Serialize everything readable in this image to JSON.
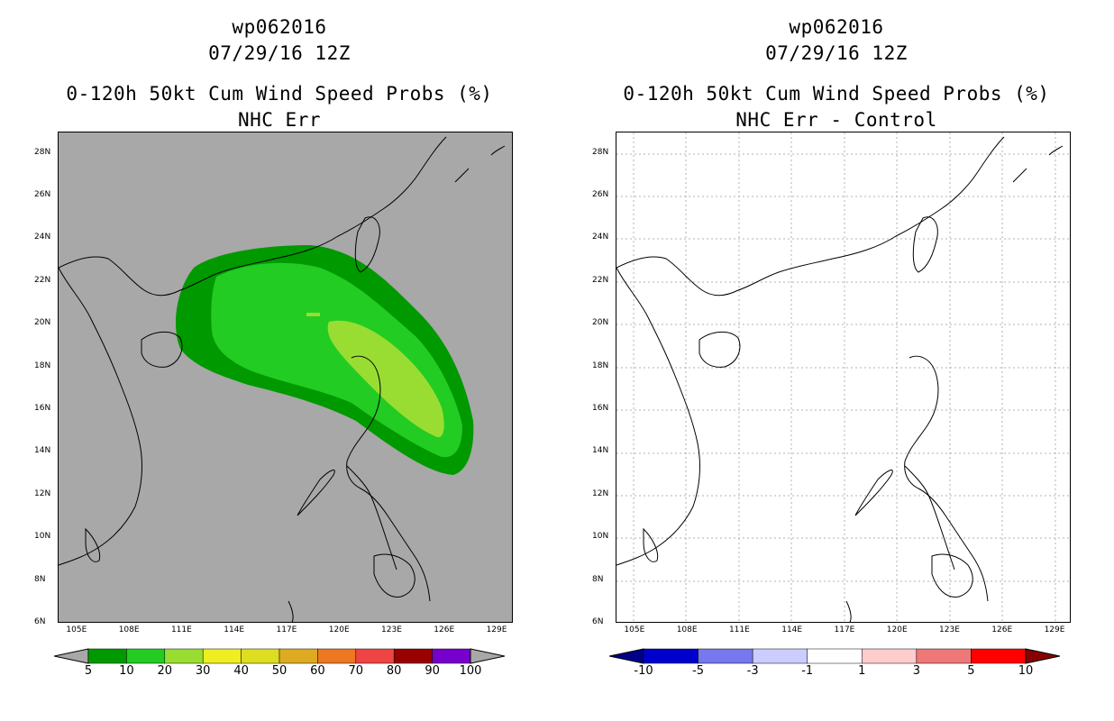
{
  "panels": [
    {
      "storm_id": "wp062016",
      "datetime": "07/29/16 12Z",
      "product": "0-120h 50kt Cum Wind Speed Probs (%)",
      "subtitle": "NHC Err",
      "background": "#a8a8a8",
      "grid": false,
      "colorbar": {
        "labels": [
          "5",
          "10",
          "20",
          "30",
          "40",
          "50",
          "60",
          "70",
          "80",
          "90",
          "100"
        ],
        "colors": [
          "#009900",
          "#22cc22",
          "#99dd33",
          "#eeee22",
          "#dddd22",
          "#ddaa22",
          "#ee7722",
          "#ee4444",
          "#990000",
          "#7700cc"
        ],
        "under_color": "#a8a8a8",
        "over_color": "#a8a8a8"
      }
    },
    {
      "storm_id": "wp062016",
      "datetime": "07/29/16 12Z",
      "product": "0-120h 50kt Cum Wind Speed Probs (%)",
      "subtitle": "NHC Err - Control",
      "background": "#ffffff",
      "grid": true,
      "colorbar": {
        "labels": [
          "-10",
          "-5",
          "-3",
          "-1",
          "1",
          "3",
          "5",
          "10"
        ],
        "colors": [
          "#0000cc",
          "#7777ee",
          "#ccccff",
          "#ffffff",
          "#ffcccc",
          "#ee7777",
          "#ff0000"
        ],
        "under_color": "#000088",
        "over_color": "#880000"
      }
    }
  ],
  "axes": {
    "lon_labels": [
      "105E",
      "108E",
      "111E",
      "114E",
      "117E",
      "120E",
      "123E",
      "126E",
      "129E"
    ],
    "lat_labels": [
      "6N",
      "8N",
      "10N",
      "12N",
      "14N",
      "16N",
      "18N",
      "20N",
      "22N",
      "24N",
      "26N",
      "28N"
    ],
    "lon_range": [
      104,
      130
    ],
    "lat_range": [
      6,
      29
    ]
  },
  "probability_contours": [
    {
      "level": 5,
      "color": "#009900"
    },
    {
      "level": 10,
      "color": "#22cc22"
    },
    {
      "level": 20,
      "color": "#99dd33"
    }
  ]
}
